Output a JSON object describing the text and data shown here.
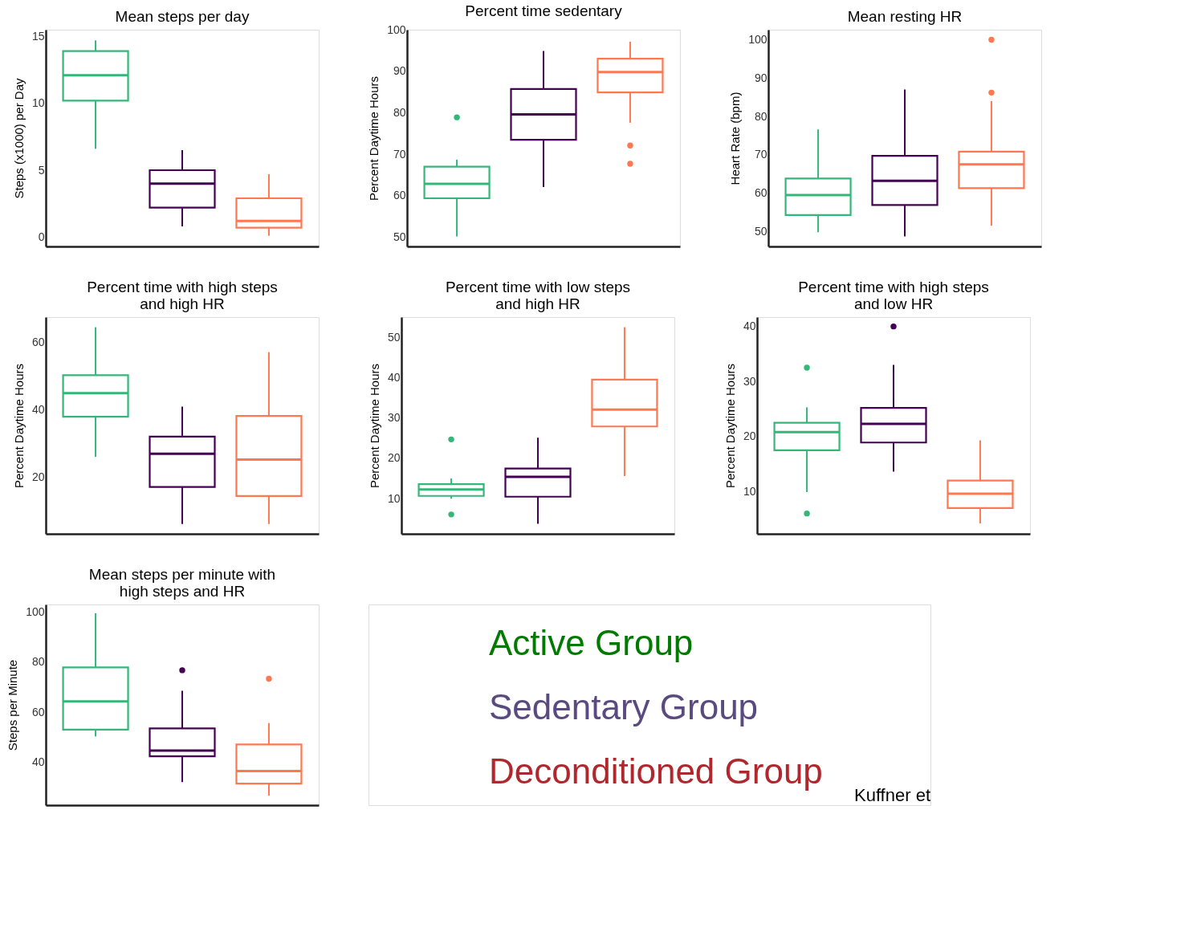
{
  "chart_data": [
    {
      "type": "box",
      "title": "Mean steps per day",
      "ylabel": "Steps (x1000) per Day",
      "categories": [
        null,
        null,
        null
      ],
      "colors": [
        "#35b779",
        "#440154",
        "#ff7850"
      ],
      "ylim": [
        -0.7,
        15.5
      ],
      "yticks": [
        0,
        5,
        10,
        15
      ],
      "tick_labels": "y",
      "grid": false,
      "boxes": [
        {
          "low": 6.6,
          "q1": 10.2,
          "median": 12.1,
          "q3": 13.9,
          "high": 14.7
        },
        {
          "low": 0.8,
          "q1": 2.2,
          "median": 4.0,
          "q3": 5.0,
          "high": 6.5
        },
        {
          "low": 0.1,
          "q1": 0.7,
          "median": 1.2,
          "q3": 2.9,
          "high": 4.7
        }
      ]
    },
    {
      "type": "box",
      "title": "Percent time sedentary",
      "ylabel": "Percent Daytime Hours",
      "categories": [
        null,
        null,
        null
      ],
      "colors": [
        "#35b779",
        "#440154",
        "#ff7850"
      ],
      "ylim": [
        47.8,
        100
      ],
      "yticks": [
        50,
        60,
        70,
        80,
        90,
        100
      ],
      "tick_labels": "y",
      "grid": false,
      "boxes": [
        {
          "low": 50.2,
          "q1": 59.4,
          "median": 62.9,
          "q3": 67.0,
          "high": 68.7,
          "outliers": [
            78.9
          ]
        },
        {
          "low": 62.1,
          "q1": 73.5,
          "median": 79.6,
          "q3": 85.7,
          "high": 94.9
        },
        {
          "low": 77.6,
          "q1": 84.9,
          "median": 89.8,
          "q3": 93.0,
          "high": 97.1,
          "outliers": [
            72.1,
            67.7
          ]
        }
      ]
    },
    {
      "type": "box",
      "title": "Mean resting HR",
      "ylabel": "Heart Rate (bpm)",
      "categories": [
        null,
        null,
        null
      ],
      "colors": [
        "#35b779",
        "#440154",
        "#ff7850"
      ],
      "ylim": [
        46.1,
        102.6
      ],
      "yticks": [
        50,
        60,
        70,
        80,
        90,
        100
      ],
      "tick_labels": "y",
      "grid": false,
      "boxes": [
        {
          "low": 49.8,
          "q1": 54.3,
          "median": 59.5,
          "q3": 63.8,
          "high": 76.6
        },
        {
          "low": 48.7,
          "q1": 56.9,
          "median": 63.2,
          "q3": 69.7,
          "high": 87.0
        },
        {
          "low": 51.5,
          "q1": 61.3,
          "median": 67.5,
          "q3": 70.8,
          "high": 84.0,
          "outliers": [
            100,
            86.2
          ]
        }
      ]
    },
    {
      "type": "box",
      "title": "Percent time with high steps\nand high HR",
      "ylabel": "Percent Daytime Hours",
      "categories": [
        null,
        null,
        null
      ],
      "colors": [
        "#35b779",
        "#440154",
        "#ff7850"
      ],
      "ylim": [
        3.3,
        67.5
      ],
      "yticks": [
        20,
        40,
        60
      ],
      "tick_labels": "y",
      "grid": false,
      "boxes": [
        {
          "low": 26.1,
          "q1": 38.0,
          "median": 45.0,
          "q3": 50.3,
          "high": 64.5
        },
        {
          "low": 6.2,
          "q1": 17.2,
          "median": 27.0,
          "q3": 32.1,
          "high": 41.0
        },
        {
          "low": 6.2,
          "q1": 14.5,
          "median": 25.3,
          "q3": 38.2,
          "high": 57.1
        }
      ]
    },
    {
      "type": "box",
      "title": "Percent time with low steps\nand high HR",
      "ylabel": "Percent Daytime Hours",
      "categories": [
        null,
        null,
        null
      ],
      "colors": [
        "#35b779",
        "#440154",
        "#ff7850"
      ],
      "ylim": [
        1.3,
        55.0
      ],
      "yticks": [
        10,
        20,
        30,
        40,
        50
      ],
      "tick_labels": "y",
      "grid": false,
      "boxes": [
        {
          "low": 10.0,
          "q1": 10.7,
          "median": 12.3,
          "q3": 13.6,
          "high": 15.0,
          "outliers": [
            24.7,
            6.1
          ]
        },
        {
          "low": 3.8,
          "q1": 10.5,
          "median": 15.4,
          "q3": 17.5,
          "high": 25.1
        },
        {
          "low": 15.6,
          "q1": 27.9,
          "median": 32.1,
          "q3": 39.5,
          "high": 52.5
        }
      ]
    },
    {
      "type": "box",
      "title": "Percent time with high steps\nand low HR",
      "ylabel": "Percent Daytime Hours",
      "categories": [
        null,
        null,
        null
      ],
      "colors": [
        "#35b779",
        "#440154",
        "#ff7850"
      ],
      "ylim": [
        2.3,
        41.7
      ],
      "yticks": [
        10,
        20,
        30,
        40
      ],
      "tick_labels": "y",
      "grid": false,
      "boxes": [
        {
          "low": 9.9,
          "q1": 17.5,
          "median": 20.8,
          "q3": 22.5,
          "high": 25.3,
          "outliers": [
            32.5,
            6.0
          ]
        },
        {
          "low": 13.6,
          "q1": 18.9,
          "median": 22.3,
          "q3": 25.2,
          "high": 33.0,
          "outliers": [
            40.0
          ]
        },
        {
          "low": 4.2,
          "q1": 7.0,
          "median": 9.6,
          "q3": 12.0,
          "high": 19.3
        }
      ]
    },
    {
      "type": "box",
      "title": "Mean steps per minute with\nhigh steps and HR",
      "ylabel": "Steps per Minute",
      "categories": [
        null,
        null,
        null
      ],
      "colors": [
        "#35b779",
        "#440154",
        "#ff7850"
      ],
      "ylim": [
        23,
        103
      ],
      "yticks": [
        40,
        60,
        80,
        100
      ],
      "tick_labels": "y",
      "grid": false,
      "boxes": [
        {
          "low": 50.4,
          "q1": 53.1,
          "median": 64.4,
          "q3": 77.9,
          "high": 99.5
        },
        {
          "low": 32.2,
          "q1": 42.5,
          "median": 44.8,
          "q3": 53.6,
          "high": 68.6,
          "outliers": [
            76.8
          ]
        },
        {
          "low": 26.8,
          "q1": 31.6,
          "median": 36.6,
          "q3": 47.2,
          "high": 55.7,
          "outliers": [
            73.4
          ]
        }
      ]
    },
    {
      "type": "other",
      "series": [
        {
          "name": "Active Group",
          "color": "#007a00"
        },
        {
          "name": "Sedentary Group",
          "color": "#5a4a80"
        },
        {
          "name": "Deconditioned Group",
          "color": "#b0282e"
        }
      ],
      "annotations": [
        "Kuffner et"
      ]
    }
  ]
}
